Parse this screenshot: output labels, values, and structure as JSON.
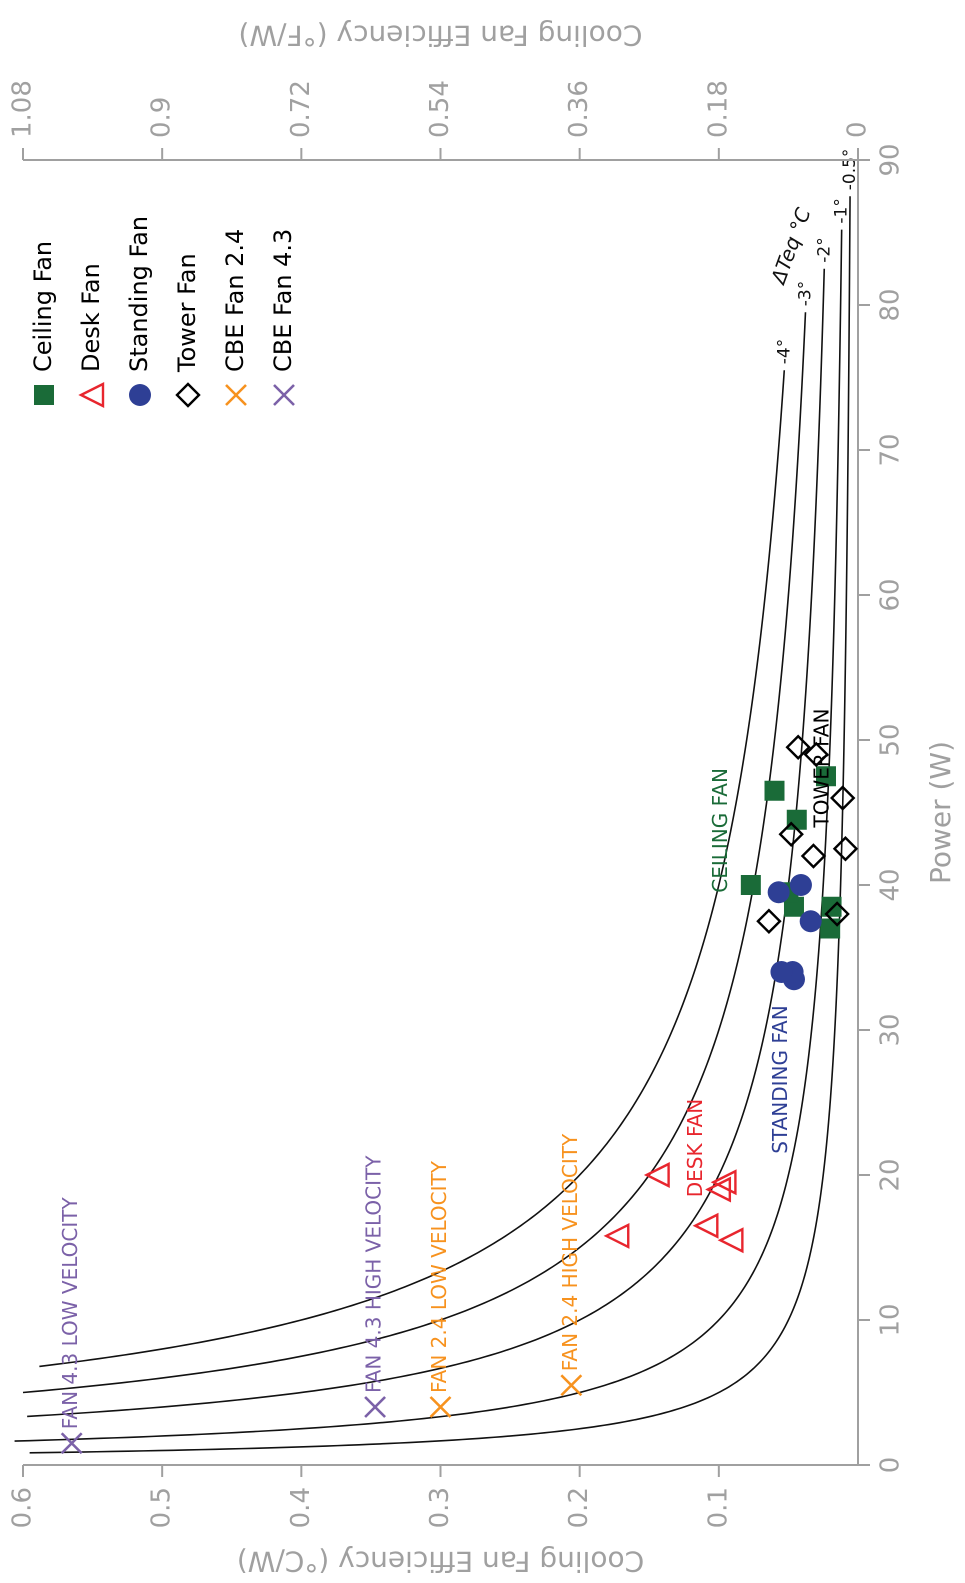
{
  "chart_data": {
    "type": "scatter",
    "orientation": "rotated-90-clockwise",
    "xlabel": "Power (W)",
    "ylabel": "Cooling Fan Efficiency (°C/W)",
    "y2label": "Cooling Fan Efficiency (°F/W)",
    "xlim": [
      0,
      90
    ],
    "ylim": [
      0,
      0.6
    ],
    "y2lim": [
      0,
      1.08
    ],
    "xticks": [
      "0",
      "10",
      "20",
      "30",
      "40",
      "50",
      "60",
      "70",
      "80",
      "90"
    ],
    "yticks": [
      "0.1",
      "0.2",
      "0.3",
      "0.4",
      "0.5",
      "0.6"
    ],
    "y2ticks": [
      "0",
      "0.18",
      "0.36",
      "0.54",
      "0.72",
      "0.9",
      "1.08"
    ],
    "curve_title": "ΔTeq °C",
    "curves": [
      {
        "dteq": 4,
        "label": "-4°"
      },
      {
        "dteq": 3,
        "label": "-3°"
      },
      {
        "dteq": 2,
        "label": "-2°"
      },
      {
        "dteq": 1,
        "label": "-1°"
      },
      {
        "dteq": 0.5,
        "label": "-0.5°"
      }
    ],
    "legend_position": "top-right",
    "series": [
      {
        "name": "Ceiling Fan",
        "color": "#1a6b38",
        "marker": "square",
        "points": [
          [
            37,
            0.02
          ],
          [
            38.5,
            0.019
          ],
          [
            38.5,
            0.046
          ],
          [
            39.5,
            0.05
          ],
          [
            40,
            0.077
          ],
          [
            44.5,
            0.044
          ],
          [
            46.5,
            0.06
          ],
          [
            47.5,
            0.023
          ]
        ]
      },
      {
        "name": "Desk Fan",
        "color": "#e8262e",
        "marker": "triangle",
        "points": [
          [
            15.5,
            0.091
          ],
          [
            15.8,
            0.173
          ],
          [
            16.5,
            0.109
          ],
          [
            19,
            0.1
          ],
          [
            19.5,
            0.096
          ],
          [
            20,
            0.144
          ]
        ]
      },
      {
        "name": "Standing Fan",
        "color": "#2e3f95",
        "marker": "circle",
        "points": [
          [
            33.5,
            0.046
          ],
          [
            34,
            0.047
          ],
          [
            34,
            0.055
          ],
          [
            37.5,
            0.034
          ],
          [
            39.5,
            0.057
          ],
          [
            40,
            0.041
          ]
        ]
      },
      {
        "name": "Tower Fan",
        "color": "#000000",
        "marker": "diamond",
        "points": [
          [
            37.5,
            0.064
          ],
          [
            38,
            0.015
          ],
          [
            42,
            0.032
          ],
          [
            42.5,
            0.009
          ],
          [
            43.5,
            0.048
          ],
          [
            46,
            0.011
          ],
          [
            49,
            0.03
          ],
          [
            49.5,
            0.043
          ]
        ]
      },
      {
        "name": "CBE Fan 2.4",
        "color": "#f7921e",
        "marker": "x",
        "points": [
          [
            5.5,
            0.206
          ],
          [
            4,
            0.3
          ]
        ]
      },
      {
        "name": "CBE Fan 4.3",
        "color": "#7b61a8",
        "marker": "x",
        "points": [
          [
            1.5,
            0.565
          ],
          [
            4,
            0.347
          ]
        ]
      }
    ],
    "annotations": [
      {
        "text": "FAN 4.3 LOW VELOCITY",
        "series": "CBE Fan 4.3",
        "x": 1.5,
        "y": 0.565
      },
      {
        "text": "FAN 4.3 HIGH VELOCITY",
        "series": "CBE Fan 4.3",
        "x": 4,
        "y": 0.347
      },
      {
        "text": "FAN 2.4 LOW VELOCITY",
        "series": "CBE Fan 2.4",
        "x": 4,
        "y": 0.3
      },
      {
        "text": "FAN 2.4 HIGH VELOCITY",
        "series": "CBE Fan 2.4",
        "x": 5.5,
        "y": 0.206
      },
      {
        "text": "DESK FAN",
        "series": "Desk Fan",
        "x": 17.5,
        "y": 0.116
      },
      {
        "text": "STANDING FAN",
        "series": "Standing Fan",
        "x": 20.5,
        "y": 0.055
      },
      {
        "text": "CEILING FAN",
        "series": "Ceiling Fan",
        "x": 38.5,
        "y": 0.098
      },
      {
        "text": "TOWER FAN",
        "series": "Tower Fan",
        "x": 43,
        "y": 0.025
      }
    ]
  }
}
